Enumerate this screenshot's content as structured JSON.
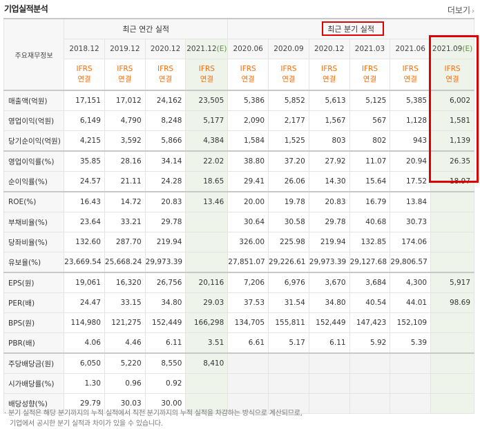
{
  "header": {
    "title": "기업실적분석",
    "more": "더보기",
    "more_arrow": "›"
  },
  "table": {
    "row_header_label": "주요재무정보",
    "annual_group": "최근 연간 실적",
    "quarter_group": "최근 분기 실적",
    "periods": [
      "2018.12",
      "2019.12",
      "2020.12",
      "2021.12",
      "2020.06",
      "2020.09",
      "2020.12",
      "2021.03",
      "2021.06",
      "2021.09"
    ],
    "estimate_mark": "(E)",
    "accounting_line1": "IFRS",
    "accounting_line2": "연결",
    "rows": [
      {
        "label": "매출액(억원)",
        "values": [
          "17,151",
          "17,012",
          "24,162",
          "23,505",
          "5,386",
          "5,852",
          "5,613",
          "5,125",
          "5,385",
          "6,002"
        ]
      },
      {
        "label": "영업이익(억원)",
        "values": [
          "6,149",
          "4,790",
          "8,248",
          "5,177",
          "2,090",
          "2,177",
          "1,567",
          "567",
          "1,128",
          "1,581"
        ]
      },
      {
        "label": "당기순이익(억원)",
        "values": [
          "4,215",
          "3,592",
          "5,866",
          "4,384",
          "1,584",
          "1,525",
          "803",
          "802",
          "943",
          "1,139"
        ]
      },
      {
        "label": "영업이익률(%)",
        "values": [
          "35.85",
          "28.16",
          "34.14",
          "22.02",
          "38.80",
          "37.20",
          "27.92",
          "11.07",
          "20.94",
          "26.35"
        ]
      },
      {
        "label": "순이익률(%)",
        "values": [
          "24.57",
          "21.11",
          "24.28",
          "18.65",
          "29.41",
          "26.06",
          "14.30",
          "15.64",
          "17.52",
          "18.97"
        ]
      },
      {
        "label": "ROE(%)",
        "values": [
          "16.43",
          "14.72",
          "20.83",
          "13.46",
          "20.00",
          "19.78",
          "20.83",
          "16.79",
          "13.84",
          ""
        ]
      },
      {
        "label": "부채비율(%)",
        "values": [
          "23.64",
          "33.21",
          "29.78",
          "",
          "30.64",
          "30.58",
          "29.78",
          "40.68",
          "30.73",
          ""
        ]
      },
      {
        "label": "당좌비율(%)",
        "values": [
          "132.60",
          "287.70",
          "219.94",
          "",
          "326.00",
          "225.98",
          "219.94",
          "132.85",
          "174.06",
          ""
        ]
      },
      {
        "label": "유보율(%)",
        "values": [
          "23,669.54",
          "25,668.24",
          "29,973.39",
          "",
          "27,851.07",
          "29,226.61",
          "29,973.39",
          "29,127.68",
          "29,806.57",
          ""
        ]
      },
      {
        "label": "EPS(원)",
        "values": [
          "19,061",
          "16,320",
          "26,756",
          "20,116",
          "7,206",
          "6,976",
          "3,670",
          "3,684",
          "4,300",
          "5,917"
        ]
      },
      {
        "label": "PER(배)",
        "values": [
          "24.47",
          "33.15",
          "34.80",
          "29.03",
          "37.53",
          "31.54",
          "34.80",
          "40.54",
          "44.01",
          "98.69"
        ]
      },
      {
        "label": "BPS(원)",
        "values": [
          "114,980",
          "121,275",
          "152,449",
          "166,298",
          "134,705",
          "155,811",
          "152,449",
          "147,423",
          "152,109",
          ""
        ]
      },
      {
        "label": "PBR(배)",
        "values": [
          "4.06",
          "4.46",
          "6.11",
          "3.51",
          "6.61",
          "5.17",
          "6.11",
          "5.92",
          "5.39",
          ""
        ]
      },
      {
        "label": "주당배당금(원)",
        "values": [
          "6,050",
          "5,220",
          "8,550",
          "8,410",
          "",
          "",
          "",
          "",
          "",
          ""
        ]
      },
      {
        "label": "시가배당률(%)",
        "values": [
          "1.30",
          "0.96",
          "0.92",
          "",
          "",
          "",
          "",
          "",
          "",
          ""
        ]
      },
      {
        "label": "배당성향(%)",
        "values": [
          "29.79",
          "30.03",
          "30.00",
          "",
          "",
          "",
          "",
          "",
          "",
          ""
        ]
      }
    ]
  },
  "note": {
    "line1": "· 분기 실적은 해당 분기까지의 누적 실적에서 직전 분기까지의 누적 실적을 차감하는 방식으로 계산되므로,",
    "line2": "기업에서 공시한 분기 실적과 차이가 있을 수 있습니다."
  },
  "colors": {
    "accounting": "#ff6a00",
    "estimate_bg": "#eef4ea",
    "highlight_box": "#e00000"
  }
}
